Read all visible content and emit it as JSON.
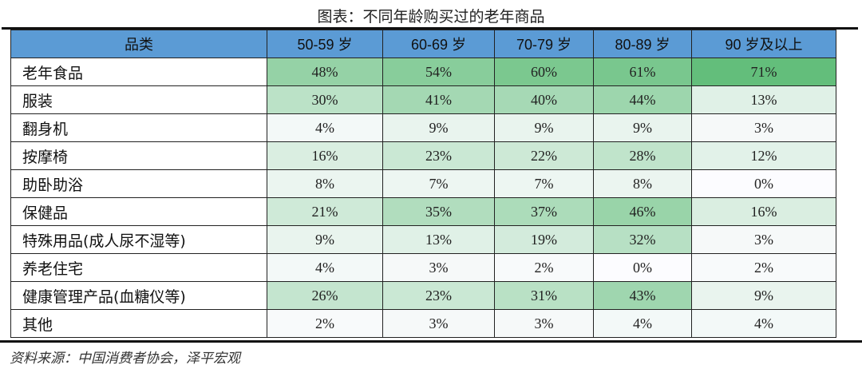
{
  "title": "图表：不同年龄购买过的老年商品",
  "source": "资料来源：中国消费者协会，泽平宏观",
  "chart_data": {
    "type": "table",
    "title": "图表：不同年龄购买过的老年商品",
    "header": [
      "品类",
      "50-59 岁",
      "60-69 岁",
      "70-79 岁",
      "80-89 岁",
      "90 岁及以上"
    ],
    "rows": [
      {
        "category": "老年食品",
        "values": [
          "48%",
          "54%",
          "60%",
          "61%",
          "71%"
        ]
      },
      {
        "category": "服装",
        "values": [
          "30%",
          "41%",
          "40%",
          "44%",
          "13%"
        ]
      },
      {
        "category": "翻身机",
        "values": [
          "4%",
          "9%",
          "9%",
          "9%",
          "3%"
        ]
      },
      {
        "category": "按摩椅",
        "values": [
          "16%",
          "23%",
          "22%",
          "28%",
          "12%"
        ]
      },
      {
        "category": "助卧助浴",
        "values": [
          "8%",
          "7%",
          "7%",
          "8%",
          "0%"
        ]
      },
      {
        "category": "保健品",
        "values": [
          "21%",
          "35%",
          "37%",
          "46%",
          "16%"
        ]
      },
      {
        "category": "特殊用品(成人尿不湿等)",
        "values": [
          "9%",
          "13%",
          "19%",
          "32%",
          "3%"
        ]
      },
      {
        "category": "养老住宅",
        "values": [
          "4%",
          "3%",
          "2%",
          "0%",
          "2%"
        ]
      },
      {
        "category": "健康管理产品(血糖仪等)",
        "values": [
          "26%",
          "23%",
          "31%",
          "43%",
          "9%"
        ]
      },
      {
        "category": "其他",
        "values": [
          "2%",
          "3%",
          "3%",
          "4%",
          "4%"
        ]
      }
    ],
    "color_scale": {
      "low": "#fcfcff",
      "high": "#63be7b"
    },
    "header_color": "#5b9bd5"
  }
}
